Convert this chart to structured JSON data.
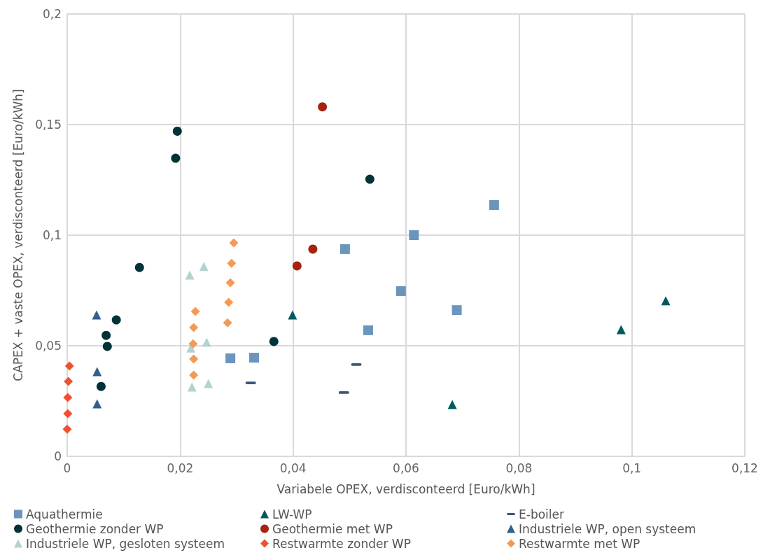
{
  "chart_data": {
    "type": "scatter",
    "xlabel": "Variabele OPEX, verdisconteerd [Euro/kWh]",
    "ylabel": "CAPEX + vaste OPEX, verdisconteerd [Euro/kWh]",
    "xlim": [
      0,
      0.12
    ],
    "ylim": [
      0,
      0.2
    ],
    "xticks": [
      {
        "value": 0,
        "label": "0"
      },
      {
        "value": 0.02,
        "label": "0,02"
      },
      {
        "value": 0.04,
        "label": "0,04"
      },
      {
        "value": 0.06,
        "label": "0,06"
      },
      {
        "value": 0.08,
        "label": "0,08"
      },
      {
        "value": 0.1,
        "label": "0,1"
      },
      {
        "value": 0.12,
        "label": "0,12"
      }
    ],
    "yticks": [
      {
        "value": 0,
        "label": "0"
      },
      {
        "value": 0.05,
        "label": "0,05"
      },
      {
        "value": 0.1,
        "label": "0,1"
      },
      {
        "value": 0.15,
        "label": "0,15"
      },
      {
        "value": 0.2,
        "label": "0,2"
      }
    ],
    "grid": true,
    "legend": "bottom",
    "series": [
      {
        "name": "Aquathermie",
        "color": "#6b95bd",
        "marker": "square",
        "x": [
          0.0289,
          0.0331,
          0.0492,
          0.0533,
          0.0591,
          0.0614,
          0.069,
          0.0756
        ],
        "values": [
          0.0443,
          0.0446,
          0.0937,
          0.057,
          0.0747,
          0.1,
          0.0661,
          0.1136
        ]
      },
      {
        "name": "LW-WP",
        "color": "#005b60",
        "marker": "triangle",
        "x": [
          0.0399,
          0.0682,
          0.0981,
          0.106
        ],
        "values": [
          0.0639,
          0.0234,
          0.0573,
          0.0703
        ]
      },
      {
        "name": "E-boiler",
        "color": "#3b5877",
        "x": [
          0.0325,
          0.049,
          0.0512
        ],
        "values": [
          0.0332,
          0.0288,
          0.0415
        ]
      },
      {
        "name": "Geothermie zonder WP",
        "color": "#003237",
        "marker": "circle",
        "x": [
          0.0195,
          0.0192,
          0.0128,
          0.0087,
          0.0069,
          0.0071,
          0.006,
          0.0366,
          0.0536
        ],
        "values": [
          0.147,
          0.1348,
          0.0854,
          0.0617,
          0.0547,
          0.0497,
          0.0316,
          0.0519,
          0.1253
        ]
      },
      {
        "name": "Geothermie met WP",
        "color": "#a5230f",
        "marker": "circle",
        "x": [
          0.0452,
          0.0435,
          0.0407
        ],
        "values": [
          0.158,
          0.0937,
          0.0861
        ]
      },
      {
        "name": "Industriele WP, open systeem",
        "color": "#33608a",
        "marker": "triangle",
        "x": [
          0.0052,
          0.0053,
          0.0053
        ],
        "values": [
          0.0639,
          0.0383,
          0.0237
        ]
      },
      {
        "name": "Industriele WP, gesloten systeem",
        "color": "#b2d3cf",
        "marker": "triangle",
        "x": [
          0.0217,
          0.0242,
          0.0247,
          0.0219,
          0.0221,
          0.025
        ],
        "values": [
          0.082,
          0.0858,
          0.0516,
          0.049,
          0.0313,
          0.0329
        ]
      },
      {
        "name": "Restwarmte zonder WP",
        "color": "#f05030",
        "marker": "diamond",
        "x": [
          0.0004,
          0.0002,
          0.0001,
          0.0001,
          0
        ],
        "values": [
          0.0408,
          0.0339,
          0.0266,
          0.0193,
          0.0123
        ]
      },
      {
        "name": "Restwarmte met WP",
        "color": "#f39a57",
        "marker": "diamond",
        "x": [
          0.0295,
          0.0291,
          0.0289,
          0.0286,
          0.0284,
          0.0227,
          0.0224,
          0.0223,
          0.0224,
          0.0224
        ],
        "values": [
          0.0965,
          0.0873,
          0.0785,
          0.0696,
          0.0604,
          0.0655,
          0.0582,
          0.0509,
          0.044,
          0.0367
        ]
      }
    ]
  }
}
